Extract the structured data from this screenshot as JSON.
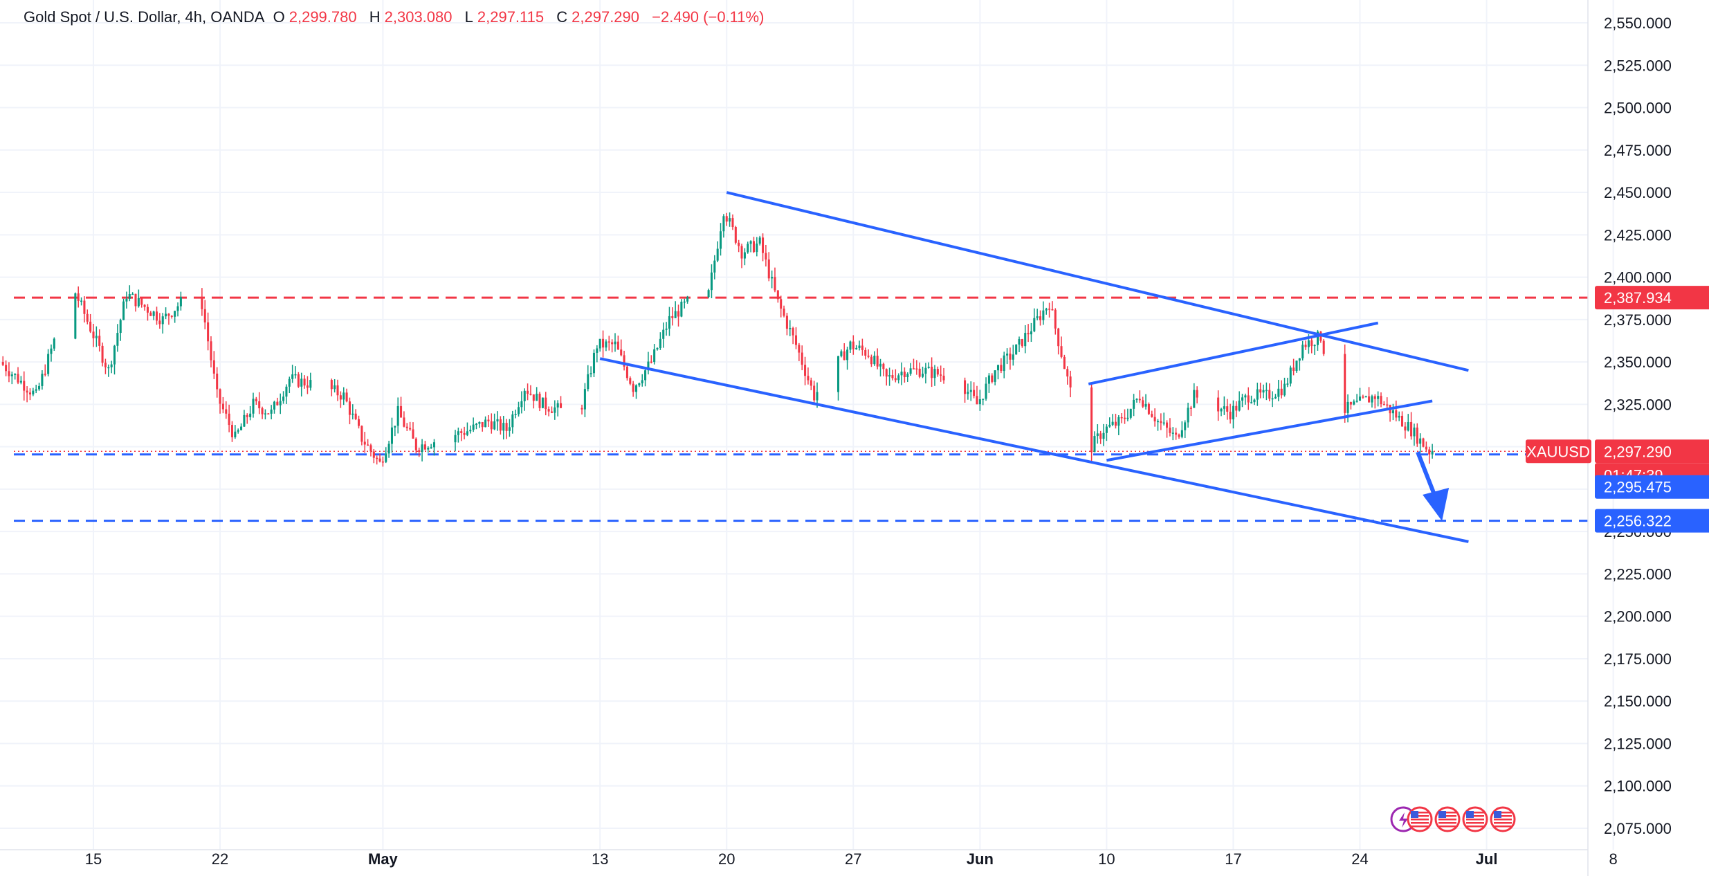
{
  "header": {
    "symbol": "Gold Spot / U.S. Dollar, 4h, OANDA",
    "o_label": "O",
    "o_value": "2,299.780",
    "h_label": "H",
    "h_value": "2,303.080",
    "l_label": "L",
    "l_value": "2,297.115",
    "c_label": "C",
    "c_value": "2,297.290",
    "change": "−2.490 (−0.11%)"
  },
  "colors": {
    "up": "#089981",
    "down": "#f23645",
    "trendline": "#2962ff",
    "resistance": "#f23645",
    "support": "#2962ff",
    "grid": "#f0f3fa",
    "text": "#131722"
  },
  "price_axis": {
    "ticks": [
      "2,550.000",
      "2,525.000",
      "2,500.000",
      "2,475.000",
      "2,450.000",
      "2,425.000",
      "2,400.000",
      "2,375.000",
      "2,350.000",
      "2,325.000",
      "2,300.000",
      "2,275.000",
      "2,250.000",
      "2,225.000",
      "2,200.000",
      "2,175.000",
      "2,150.000",
      "2,125.000",
      "2,100.000",
      "2,075.000"
    ]
  },
  "time_axis": {
    "labels": [
      "15",
      "22",
      "May",
      "13",
      "20",
      "27",
      "Jun",
      "10",
      "17",
      "24",
      "Jul",
      "8"
    ]
  },
  "price_labels": {
    "resistance": "2,387.934",
    "symbol_tag": "XAUUSD",
    "last_price": "2,297.290",
    "countdown": "01:47:39",
    "support1": "2,295.475",
    "support2": "2,256.322"
  },
  "chart_data": {
    "type": "candlestick",
    "title": "Gold Spot / U.S. Dollar, 4h, OANDA",
    "ylim": [
      2065,
      2560
    ],
    "x_range": [
      "Apr 10",
      "Jul 9"
    ],
    "horizontal_levels": [
      {
        "value": 2387.934,
        "color": "red",
        "style": "dashed"
      },
      {
        "value": 2295.475,
        "color": "blue",
        "style": "dashed"
      },
      {
        "value": 2256.322,
        "color": "blue",
        "style": "dashed"
      }
    ],
    "trendlines": [
      {
        "from": [
          "May 20",
          2450
        ],
        "to": [
          "Jun 30",
          2345
        ]
      },
      {
        "from": [
          "May 13",
          2352
        ],
        "to": [
          "Jun 30",
          2244
        ]
      },
      {
        "from": [
          "Jun 9",
          2337
        ],
        "to": [
          "Jun 25",
          2373
        ]
      },
      {
        "from": [
          "Jun 10",
          2292
        ],
        "to": [
          "Jun 28",
          2327
        ]
      }
    ],
    "projection_arrow": {
      "from": [
        "Jun 27",
        2292
      ],
      "to": [
        "Jun 28",
        2257
      ],
      "direction": "down"
    },
    "ohlc_keypoints": [
      [
        "Apr 10",
        2350
      ],
      [
        "Apr 12",
        2330
      ],
      [
        "Apr 14",
        2395
      ],
      [
        "Apr 15",
        2370
      ],
      [
        "Apr 16",
        2345
      ],
      [
        "Apr 17",
        2390
      ],
      [
        "Apr 19",
        2375
      ],
      [
        "Apr 21",
        2395
      ],
      [
        "Apr 22",
        2330
      ],
      [
        "Apr 23",
        2305
      ],
      [
        "Apr 24",
        2325
      ],
      [
        "Apr 25",
        2320
      ],
      [
        "Apr 26",
        2340
      ],
      [
        "Apr 28",
        2335
      ],
      [
        "Apr 29",
        2330
      ],
      [
        "Apr 30",
        2305
      ],
      [
        "May 1",
        2290
      ],
      [
        "May 2",
        2320
      ],
      [
        "May 3",
        2300
      ],
      [
        "May 6",
        2310
      ],
      [
        "May 7",
        2315
      ],
      [
        "May 8",
        2310
      ],
      [
        "May 9",
        2335
      ],
      [
        "May 10",
        2325
      ],
      [
        "May 12",
        2318
      ],
      [
        "May 13",
        2360
      ],
      [
        "May 14",
        2360
      ],
      [
        "May 15",
        2335
      ],
      [
        "May 16",
        2350
      ],
      [
        "May 17",
        2375
      ],
      [
        "May 18",
        2385
      ],
      [
        "May 19",
        2380
      ],
      [
        "May 20",
        2440
      ],
      [
        "May 21",
        2415
      ],
      [
        "May 22",
        2420
      ],
      [
        "May 23",
        2385
      ],
      [
        "May 24",
        2360
      ],
      [
        "May 25",
        2330
      ],
      [
        "May 26",
        2345
      ],
      [
        "May 27",
        2360
      ],
      [
        "May 28",
        2355
      ],
      [
        "May 29",
        2340
      ],
      [
        "May 30",
        2345
      ],
      [
        "May 31",
        2345
      ],
      [
        "Jun 2",
        2340
      ],
      [
        "Jun 3",
        2325
      ],
      [
        "Jun 4",
        2345
      ],
      [
        "Jun 5",
        2355
      ],
      [
        "Jun 6",
        2370
      ],
      [
        "Jun 7",
        2385
      ],
      [
        "Jun 8",
        2340
      ],
      [
        "Jun 9",
        2295
      ],
      [
        "Jun 10",
        2310
      ],
      [
        "Jun 11",
        2315
      ],
      [
        "Jun 12",
        2330
      ],
      [
        "Jun 13",
        2315
      ],
      [
        "Jun 14",
        2305
      ],
      [
        "Jun 15",
        2330
      ],
      [
        "Jun 16",
        2325
      ],
      [
        "Jun 17",
        2320
      ],
      [
        "Jun 18",
        2330
      ],
      [
        "Jun 19",
        2330
      ],
      [
        "Jun 20",
        2335
      ],
      [
        "Jun 21",
        2360
      ],
      [
        "Jun 22",
        2365
      ],
      [
        "Jun 23",
        2320
      ],
      [
        "Jun 24",
        2325
      ],
      [
        "Jun 25",
        2330
      ],
      [
        "Jun 26",
        2320
      ],
      [
        "Jun 27",
        2310
      ],
      [
        "Jun 28",
        2297.29
      ]
    ]
  },
  "footer": {
    "badges_count": 4
  }
}
